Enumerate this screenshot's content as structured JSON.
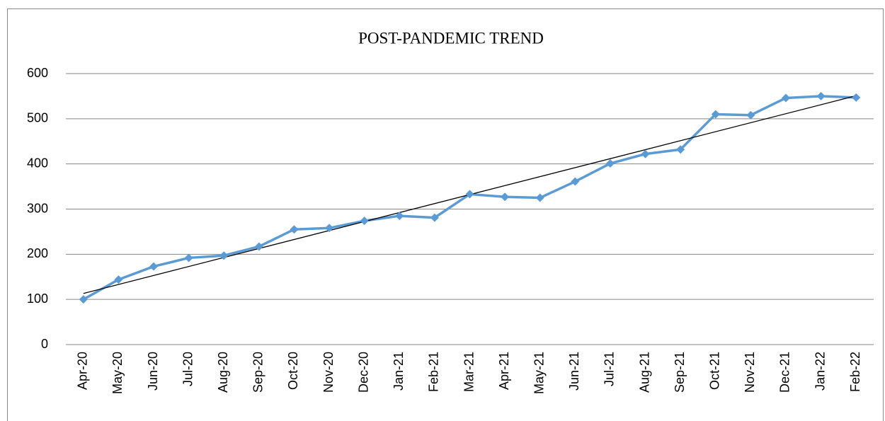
{
  "chart_data": {
    "type": "line",
    "title": "POST-PANDEMIC TREND",
    "categories": [
      "Apr-20",
      "May-20",
      "Jun-20",
      "Jul-20",
      "Aug-20",
      "Sep-20",
      "Oct-20",
      "Nov-20",
      "Dec-20",
      "Jan-21",
      "Feb-21",
      "Mar-21",
      "Apr-21",
      "May-21",
      "Jun-21",
      "Jul-21",
      "Aug-21",
      "Sep-21",
      "Oct-21",
      "Nov-21",
      "Dec-21",
      "Jan-22",
      "Feb-22"
    ],
    "series": [
      {
        "color": "#5b9bd5",
        "values": [
          100,
          144,
          173,
          192,
          197,
          217,
          255,
          258,
          274,
          285,
          281,
          333,
          327,
          325,
          361,
          401,
          422,
          432,
          510,
          508,
          546,
          550,
          547
        ]
      }
    ],
    "ylim": [
      0,
      600
    ],
    "yticks": [
      0,
      100,
      200,
      300,
      400,
      500,
      600
    ],
    "grid": true,
    "trendline": "linear",
    "trendline_color": "#000000"
  }
}
